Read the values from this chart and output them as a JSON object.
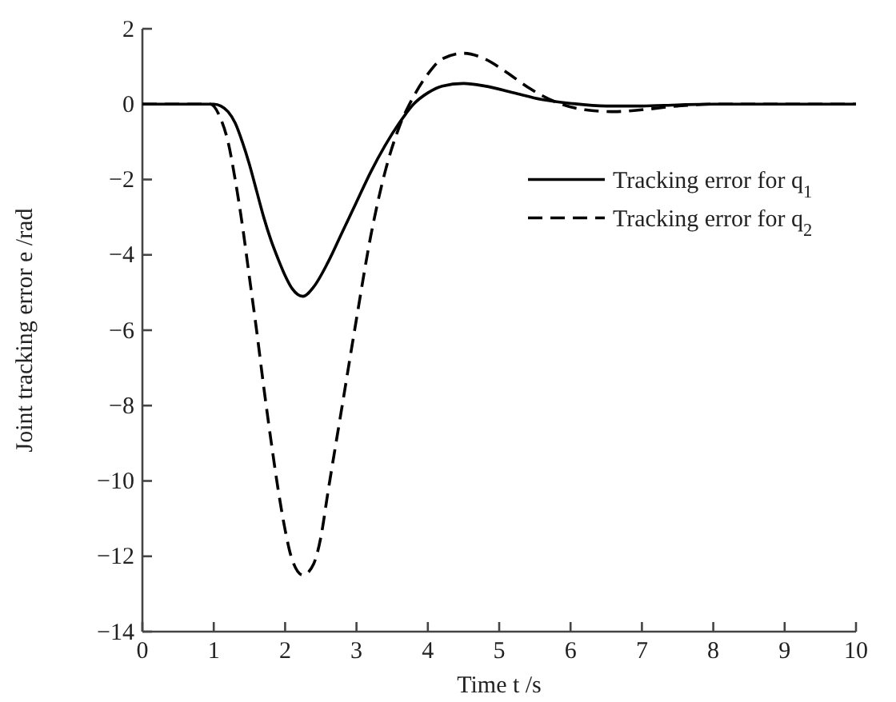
{
  "chart_data": {
    "type": "line",
    "xlabel": "Time t /s",
    "ylabel": "Joint tracking error e /rad",
    "xlim": [
      0,
      10
    ],
    "ylim": [
      -14,
      2
    ],
    "xticks": [
      0,
      1,
      2,
      3,
      4,
      5,
      6,
      7,
      8,
      9,
      10
    ],
    "yticks": [
      -14,
      -12,
      -10,
      -8,
      -6,
      -4,
      -2,
      0,
      2
    ],
    "grid": false,
    "legend": "right",
    "marker": "none",
    "series": [
      {
        "name": "Tracking error for q$_{1}$",
        "color": "#000000",
        "line_style": "solid",
        "x": [
          0,
          1,
          1.1,
          1.2,
          1.3,
          1.4,
          1.5,
          1.6,
          1.7,
          1.8,
          1.9,
          2.0,
          2.1,
          2.25,
          2.4,
          2.6,
          2.8,
          3.0,
          3.2,
          3.4,
          3.6,
          3.8,
          4.0,
          4.2,
          4.5,
          4.8,
          5.2,
          5.6,
          6.0,
          6.5,
          7,
          7.5,
          8,
          10
        ],
        "values": [
          0,
          0,
          -0.05,
          -0.2,
          -0.5,
          -1.0,
          -1.6,
          -2.3,
          -3.0,
          -3.6,
          -4.1,
          -4.55,
          -4.9,
          -5.1,
          -4.85,
          -4.2,
          -3.4,
          -2.6,
          -1.8,
          -1.1,
          -0.5,
          0,
          0.3,
          0.48,
          0.55,
          0.48,
          0.3,
          0.12,
          0.02,
          -0.05,
          -0.05,
          -0.02,
          0,
          0
        ]
      },
      {
        "name": "Tracking error for q$_{2}$",
        "color": "#000000",
        "line_style": "dashed",
        "x": [
          0,
          0.95,
          1.1,
          1.2,
          1.3,
          1.4,
          1.5,
          1.6,
          1.7,
          1.8,
          1.9,
          2.0,
          2.1,
          2.25,
          2.4,
          2.5,
          2.6,
          2.8,
          3.0,
          3.2,
          3.4,
          3.6,
          3.8,
          4.0,
          4.2,
          4.5,
          4.8,
          5.1,
          5.4,
          5.8,
          6.2,
          6.6,
          7.0,
          7.5,
          8,
          10
        ],
        "values": [
          0,
          0,
          -0.4,
          -1.0,
          -2.0,
          -3.2,
          -4.6,
          -6.0,
          -7.5,
          -8.9,
          -10.2,
          -11.3,
          -12.1,
          -12.5,
          -12.2,
          -11.5,
          -10.3,
          -8.0,
          -5.7,
          -3.5,
          -1.8,
          -0.6,
          0.2,
          0.8,
          1.2,
          1.35,
          1.2,
          0.85,
          0.45,
          0.05,
          -0.15,
          -0.2,
          -0.15,
          -0.05,
          0,
          0
        ]
      }
    ]
  }
}
